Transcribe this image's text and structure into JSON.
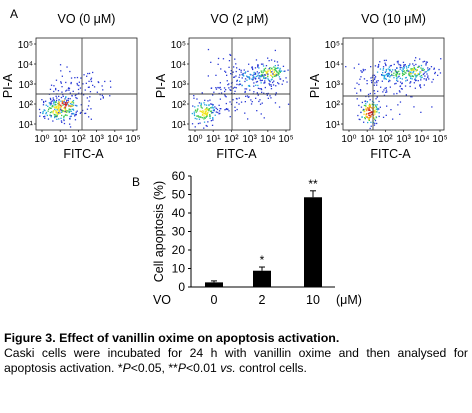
{
  "panels": {
    "a": "A",
    "b": "B"
  },
  "flow": {
    "y_label": "PI-A",
    "x_label": "FITC-A",
    "y_ticks": [
      "10⁵",
      "10⁴",
      "10³",
      "10²",
      "10¹"
    ],
    "x_ticks": [
      "10⁰",
      "10¹",
      "10²",
      "10³",
      "10⁴",
      "10⁵"
    ],
    "plots": [
      {
        "title": "VO (0 μM)"
      },
      {
        "title": "VO (2 μM)"
      },
      {
        "title": "VO (10 μM)"
      }
    ],
    "density_colors": [
      "#2b3bd6",
      "#22a7e0",
      "#3fc94f",
      "#f2e41d",
      "#f08a1a",
      "#d62020"
    ]
  },
  "chart_data": {
    "type": "bar",
    "ylabel": "Cell apoptosis (%)",
    "ylim": [
      0,
      60
    ],
    "yticks": [
      0,
      10,
      20,
      30,
      40,
      50,
      60
    ],
    "x_prefix": "VO",
    "x_unit": "(μM)",
    "categories": [
      "0",
      "2",
      "10"
    ],
    "values": [
      2.5,
      8.8,
      48.5
    ],
    "errors": [
      0.8,
      2.0,
      3.5
    ],
    "significance": [
      "",
      "*",
      "**"
    ],
    "bar_color": "#000000"
  },
  "caption": {
    "title": "Figure 3. Effect of vanillin oxime on apoptosis activation.",
    "body_1": "Caski cells were incubated for 24 h with vanillin oxime and then analysed for apoptosis activation. *",
    "p1_var": "P",
    "p1_val": "<0.05, **",
    "p2_var": "P",
    "p2_val": "<0.01 ",
    "vs": "vs.",
    "body_end": " control cells."
  }
}
